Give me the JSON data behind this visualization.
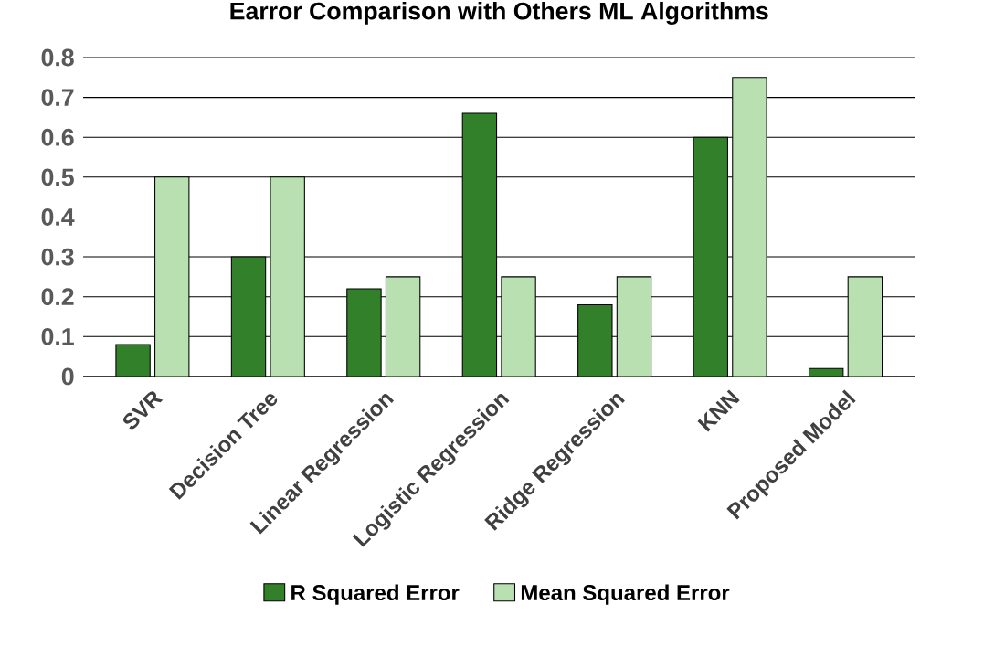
{
  "chart_data": {
    "type": "bar",
    "title": "Earror Comparison with Others ML Algorithms",
    "categories": [
      "SVR",
      "Decision Tree",
      "Linear Regression",
      "Logistic Regression",
      "Ridge Regression",
      "KNN",
      "Proposed Model"
    ],
    "series": [
      {
        "name": "R Squared Error",
        "color": "#33802a",
        "values": [
          0.08,
          0.3,
          0.22,
          0.66,
          0.18,
          0.6,
          0.02
        ]
      },
      {
        "name": "Mean Squared Error",
        "color": "#b9e0b0",
        "values": [
          0.5,
          0.5,
          0.25,
          0.25,
          0.25,
          0.75,
          0.25
        ]
      }
    ],
    "ylim": [
      0,
      0.8
    ],
    "yticks": [
      0,
      0.1,
      0.2,
      0.3,
      0.4,
      0.5,
      0.6,
      0.7,
      0.8
    ],
    "grid": "y",
    "legend": "bottom"
  }
}
